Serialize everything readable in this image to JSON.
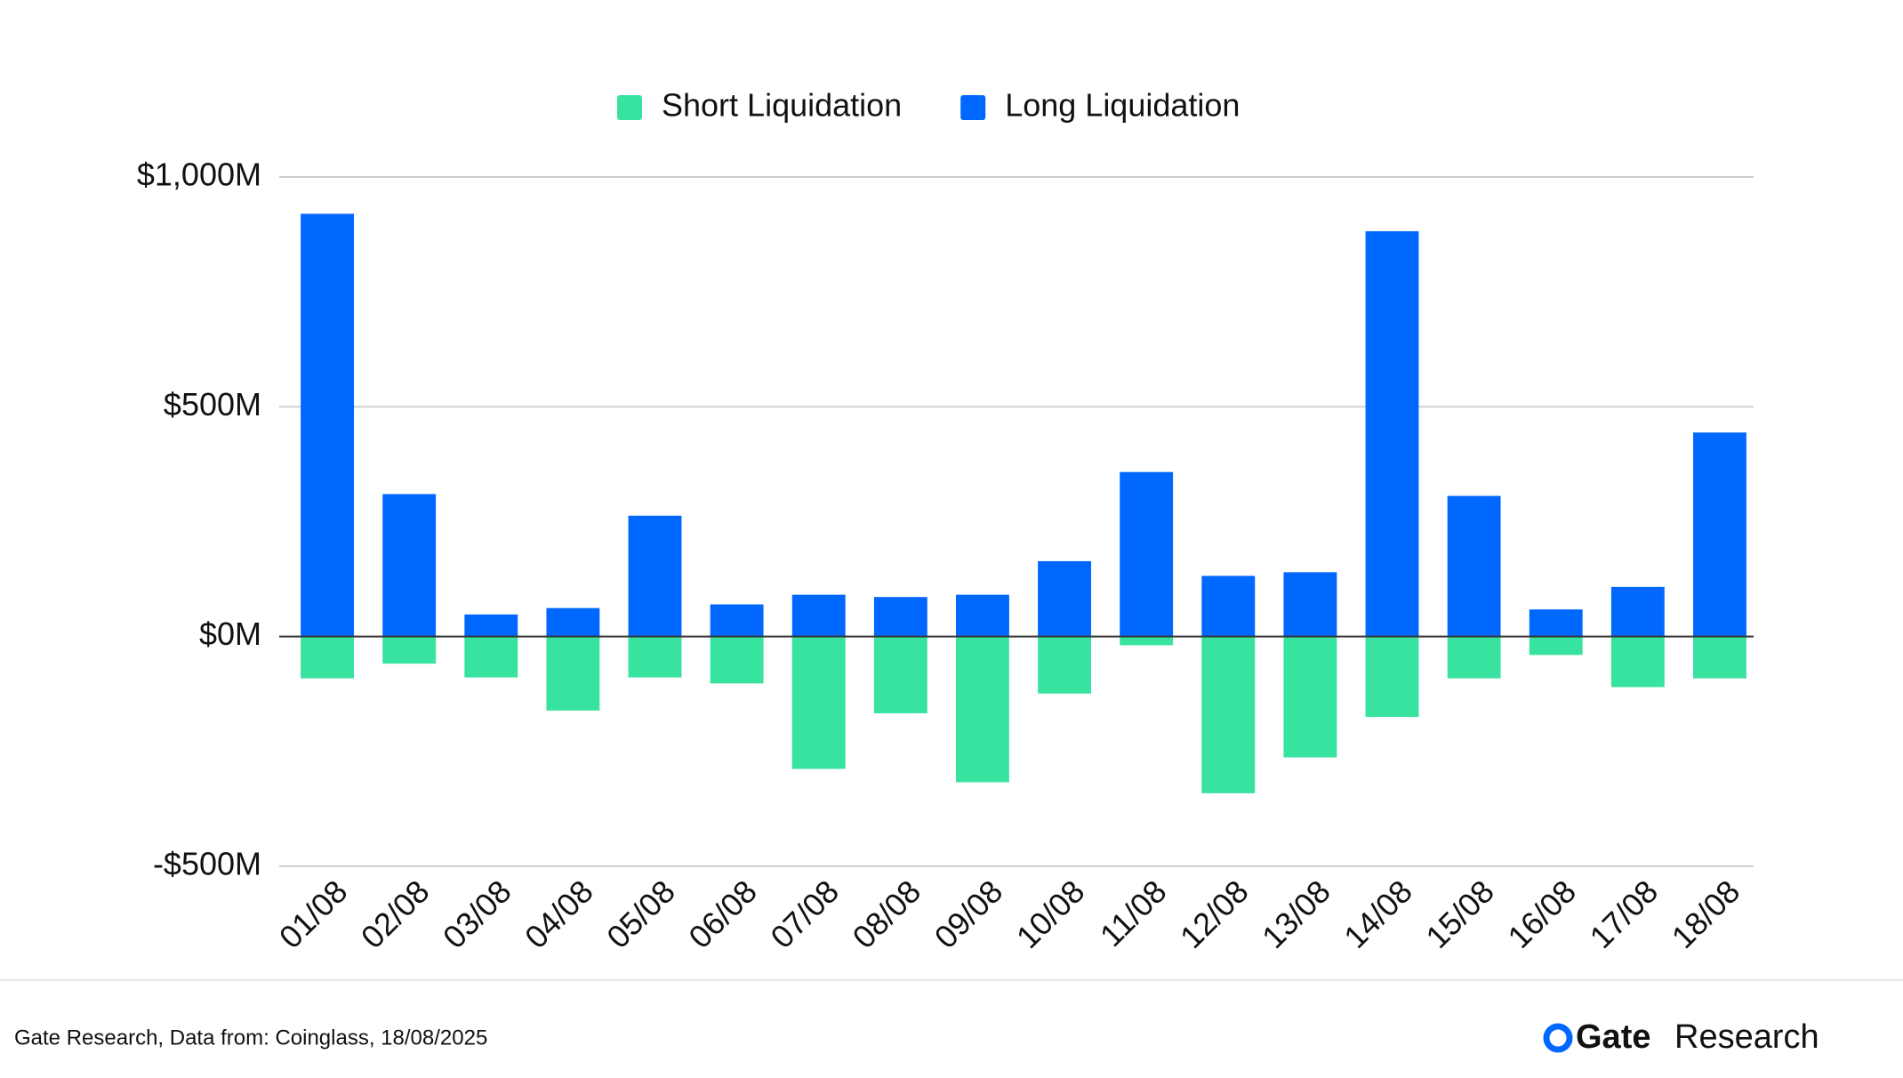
{
  "chart_data": {
    "type": "bar",
    "categories": [
      "01/08",
      "02/08",
      "03/08",
      "04/08",
      "05/08",
      "06/08",
      "07/08",
      "08/08",
      "09/08",
      "10/08",
      "11/08",
      "12/08",
      "13/08",
      "14/08",
      "15/08",
      "16/08",
      "17/08",
      "18/08"
    ],
    "series": [
      {
        "name": "Short Liquidation",
        "color": "#38e29f",
        "values": [
          -91,
          -59,
          -89,
          -161,
          -89,
          -102,
          -288,
          -167,
          -317,
          -124,
          -19,
          -341,
          -263,
          -175,
          -91,
          -40,
          -110,
          -91
        ]
      },
      {
        "name": "Long Liquidation",
        "color": "#0068ff",
        "values": [
          920,
          310,
          48,
          62,
          263,
          70,
          91,
          86,
          91,
          164,
          358,
          132,
          140,
          882,
          306,
          59,
          108,
          444
        ]
      }
    ],
    "ylim": [
      -500,
      1000
    ],
    "yticks": [
      {
        "value": -500,
        "label": "-$500M"
      },
      {
        "value": 0,
        "label": "$0M"
      },
      {
        "value": 500,
        "label": "$500M"
      },
      {
        "value": 1000,
        "label": "$1,000M"
      }
    ],
    "grid": true,
    "legend": "top"
  },
  "footer": {
    "source": "Gate Research, Data from: Coinglass, 18/08/2025",
    "logo_brand": "Gate",
    "logo_text": "Research"
  }
}
